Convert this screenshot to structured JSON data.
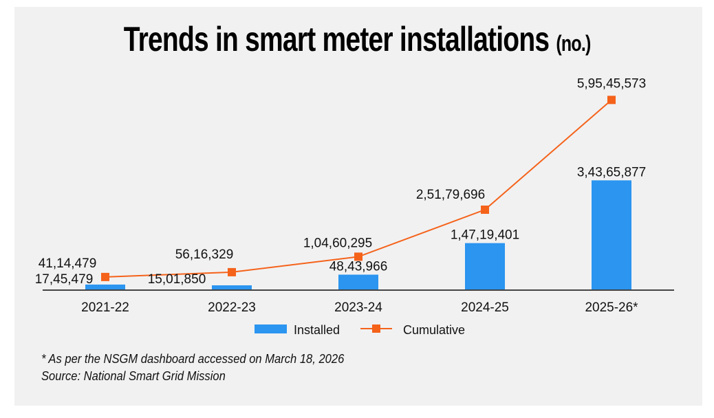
{
  "title": {
    "main": "Trends in smart meter installations",
    "unit": "(no.)"
  },
  "chart_data": {
    "type": "bar",
    "title": "Trends in smart meter installations (no.)",
    "xlabel": "",
    "ylabel": "",
    "grid": false,
    "legend_position": "bottom-center",
    "categories": [
      "2021-22",
      "2022-23",
      "2023-24",
      "2024-25",
      "2025-26*"
    ],
    "series": [
      {
        "name": "Installed",
        "type": "bar",
        "color": "#2b95f0",
        "values": [
          1745479,
          1501850,
          4843966,
          14719401,
          34365877
        ],
        "labels": [
          "17,45,479",
          "15,01,850",
          "48,43,966",
          "1,47,19,401",
          "3,43,65,877"
        ]
      },
      {
        "name": "Cumulative",
        "type": "line",
        "color": "#f5621a",
        "values": [
          4114479,
          5616329,
          10460295,
          25179696,
          59545573
        ],
        "labels": [
          "41,14,479",
          "56,16,329",
          "1,04,60,295",
          "2,51,79,696",
          "5,95,45,573"
        ]
      }
    ],
    "ylim": [
      0,
      65000000
    ]
  },
  "legend": {
    "installed": "Installed",
    "cumulative": "Cumulative"
  },
  "notes": {
    "footnote": "* As per the NSGM dashboard accessed on March 18, 2026",
    "source": "Source: National Smart Grid Mission"
  }
}
